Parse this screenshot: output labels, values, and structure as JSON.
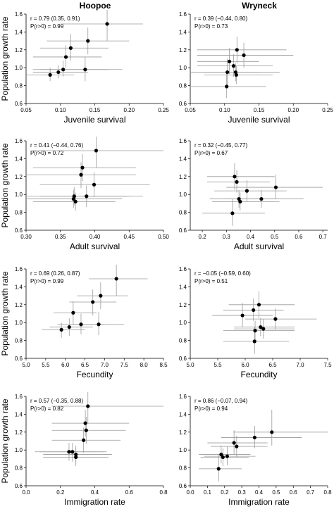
{
  "columns": [
    "Hoopoe",
    "Wryneck"
  ],
  "ylabel": "Population growth rate",
  "chart_data": [
    {
      "type": "scatter",
      "panel_id": "hoopoe-juvenile",
      "xlabel": "Juvenile survival",
      "ylabel": "Population growth rate",
      "xlim": [
        0.05,
        0.25
      ],
      "xticks": [
        "0.05",
        "0.10",
        "0.15",
        "0.20",
        "0.25"
      ],
      "ylim": [
        0.6,
        1.6
      ],
      "yticks": [
        "0.6",
        "0.8",
        "1.0",
        "1.2",
        "1.4",
        "1.6"
      ],
      "stat_r": "r = 0.79 (0.35, 0.91)",
      "stat_p": "P(r>0) = 0.99",
      "points": [
        {
          "x": 0.085,
          "y": 0.92,
          "xlo": 0.05,
          "xhi": 0.12,
          "ylo": 0.85,
          "yhi": 1.0
        },
        {
          "x": 0.097,
          "y": 0.95,
          "xlo": 0.06,
          "xhi": 0.14,
          "ylo": 0.88,
          "yhi": 1.03
        },
        {
          "x": 0.104,
          "y": 0.98,
          "xlo": 0.06,
          "xhi": 0.17,
          "ylo": 0.9,
          "yhi": 1.08
        },
        {
          "x": 0.108,
          "y": 1.12,
          "xlo": 0.06,
          "xhi": 0.16,
          "ylo": 1.0,
          "yhi": 1.25
        },
        {
          "x": 0.115,
          "y": 1.22,
          "xlo": 0.07,
          "xhi": 0.17,
          "ylo": 1.08,
          "yhi": 1.38
        },
        {
          "x": 0.136,
          "y": 0.98,
          "xlo": 0.07,
          "xhi": 0.19,
          "ylo": 0.85,
          "yhi": 1.12
        },
        {
          "x": 0.14,
          "y": 1.3,
          "xlo": 0.08,
          "xhi": 0.2,
          "ylo": 1.15,
          "yhi": 1.45
        },
        {
          "x": 0.168,
          "y": 1.49,
          "xlo": 0.1,
          "xhi": 0.22,
          "ylo": 1.3,
          "yhi": 1.68
        }
      ]
    },
    {
      "type": "scatter",
      "panel_id": "wryneck-juvenile",
      "xlabel": "Juvenile survival",
      "ylabel": "",
      "xlim": [
        0.05,
        0.25
      ],
      "xticks": [
        "0.05",
        "0.10",
        "0.15",
        "0.20",
        "0.25"
      ],
      "ylim": [
        0.6,
        1.6
      ],
      "yticks": [
        "0.6",
        "0.8",
        "1.0",
        "1.2",
        "1.4",
        "1.6"
      ],
      "stat_r": "r = 0.39 (−0.44, 0.80)",
      "stat_p": "P(r>0) = 0.73",
      "points": [
        {
          "x": 0.103,
          "y": 0.79,
          "xlo": 0.05,
          "xhi": 0.16,
          "ylo": 0.66,
          "yhi": 0.95
        },
        {
          "x": 0.104,
          "y": 0.95,
          "xlo": 0.05,
          "xhi": 0.15,
          "ylo": 0.8,
          "yhi": 1.1
        },
        {
          "x": 0.107,
          "y": 1.07,
          "xlo": 0.06,
          "xhi": 0.15,
          "ylo": 0.93,
          "yhi": 1.22
        },
        {
          "x": 0.113,
          "y": 1.02,
          "xlo": 0.06,
          "xhi": 0.17,
          "ylo": 0.9,
          "yhi": 1.15
        },
        {
          "x": 0.116,
          "y": 0.95,
          "xlo": 0.07,
          "xhi": 0.18,
          "ylo": 0.85,
          "yhi": 1.05
        },
        {
          "x": 0.117,
          "y": 0.92,
          "xlo": 0.07,
          "xhi": 0.17,
          "ylo": 0.82,
          "yhi": 1.02
        },
        {
          "x": 0.118,
          "y": 1.2,
          "xlo": 0.06,
          "xhi": 0.19,
          "ylo": 1.05,
          "yhi": 1.35
        },
        {
          "x": 0.128,
          "y": 1.14,
          "xlo": 0.06,
          "xhi": 0.2,
          "ylo": 1.0,
          "yhi": 1.28
        }
      ]
    },
    {
      "type": "scatter",
      "panel_id": "hoopoe-adult",
      "xlabel": "Adult survival",
      "ylabel": "Population growth rate",
      "xlim": [
        0.3,
        0.5
      ],
      "xticks": [
        "0.30",
        "0.35",
        "0.40",
        "0.45",
        "0.50"
      ],
      "ylim": [
        0.6,
        1.6
      ],
      "yticks": [
        "0.6",
        "0.8",
        "1.0",
        "1.2",
        "1.4",
        "1.6"
      ],
      "stat_r": "r = 0.41 (−0.44, 0.76)",
      "stat_p": "P(r>0) = 0.72",
      "points": [
        {
          "x": 0.369,
          "y": 0.95,
          "xlo": 0.3,
          "xhi": 0.44,
          "ylo": 0.85,
          "yhi": 1.05
        },
        {
          "x": 0.37,
          "y": 0.98,
          "xlo": 0.3,
          "xhi": 0.45,
          "ylo": 0.88,
          "yhi": 1.08
        },
        {
          "x": 0.372,
          "y": 0.92,
          "xlo": 0.31,
          "xhi": 0.43,
          "ylo": 0.82,
          "yhi": 1.02
        },
        {
          "x": 0.38,
          "y": 1.22,
          "xlo": 0.3,
          "xhi": 0.46,
          "ylo": 1.07,
          "yhi": 1.36
        },
        {
          "x": 0.382,
          "y": 1.3,
          "xlo": 0.31,
          "xhi": 0.46,
          "ylo": 1.15,
          "yhi": 1.45
        },
        {
          "x": 0.388,
          "y": 0.98,
          "xlo": 0.32,
          "xhi": 0.47,
          "ylo": 0.86,
          "yhi": 1.1
        },
        {
          "x": 0.399,
          "y": 1.11,
          "xlo": 0.32,
          "xhi": 0.48,
          "ylo": 0.97,
          "yhi": 1.25
        },
        {
          "x": 0.402,
          "y": 1.49,
          "xlo": 0.31,
          "xhi": 0.5,
          "ylo": 1.3,
          "yhi": 1.68
        }
      ]
    },
    {
      "type": "scatter",
      "panel_id": "wryneck-adult",
      "xlabel": "Adult survival",
      "ylabel": "",
      "xlim": [
        0.15,
        0.72
      ],
      "xticks": [
        "0.2",
        "0.3",
        "0.4",
        "0.5",
        "0.6",
        "0.7"
      ],
      "ylim": [
        0.6,
        1.6
      ],
      "yticks": [
        "0.6",
        "0.8",
        "1.0",
        "1.2",
        "1.4",
        "1.6"
      ],
      "stat_r": "r = 0.32 (−0.45, 0.77)",
      "stat_p": "P(r>0) = 0.67",
      "points": [
        {
          "x": 0.325,
          "y": 0.79,
          "xlo": 0.2,
          "xhi": 0.46,
          "ylo": 0.65,
          "yhi": 0.95
        },
        {
          "x": 0.334,
          "y": 1.2,
          "xlo": 0.22,
          "xhi": 0.5,
          "ylo": 1.05,
          "yhi": 1.35
        },
        {
          "x": 0.343,
          "y": 1.14,
          "xlo": 0.22,
          "xhi": 0.48,
          "ylo": 1.02,
          "yhi": 1.27
        },
        {
          "x": 0.352,
          "y": 0.95,
          "xlo": 0.23,
          "xhi": 0.5,
          "ylo": 0.85,
          "yhi": 1.05
        },
        {
          "x": 0.357,
          "y": 0.92,
          "xlo": 0.24,
          "xhi": 0.52,
          "ylo": 0.82,
          "yhi": 1.02
        },
        {
          "x": 0.385,
          "y": 1.04,
          "xlo": 0.25,
          "xhi": 0.55,
          "ylo": 0.92,
          "yhi": 1.16
        },
        {
          "x": 0.445,
          "y": 0.95,
          "xlo": 0.3,
          "xhi": 0.62,
          "ylo": 0.85,
          "yhi": 1.05
        },
        {
          "x": 0.505,
          "y": 1.08,
          "xlo": 0.3,
          "xhi": 0.7,
          "ylo": 0.95,
          "yhi": 1.22
        }
      ]
    },
    {
      "type": "scatter",
      "panel_id": "hoopoe-fecundity",
      "xlabel": "Fecundity",
      "ylabel": "Population growth rate",
      "xlim": [
        5.0,
        8.5
      ],
      "xticks": [
        "5.0",
        "5.5",
        "6.0",
        "6.5",
        "7.0",
        "7.5",
        "8.0",
        "8.5"
      ],
      "ylim": [
        0.6,
        1.6
      ],
      "yticks": [
        "0.6",
        "0.8",
        "1.0",
        "1.2",
        "1.4",
        "1.6"
      ],
      "stat_r": "r = 0.69 (0.26, 0.87)",
      "stat_p": "P(r>0) = 0.99",
      "points": [
        {
          "x": 5.9,
          "y": 0.92,
          "xlo": 5.4,
          "xhi": 6.5,
          "ylo": 0.83,
          "yhi": 1.0
        },
        {
          "x": 6.1,
          "y": 0.95,
          "xlo": 5.6,
          "xhi": 6.7,
          "ylo": 0.85,
          "yhi": 1.05
        },
        {
          "x": 6.2,
          "y": 1.11,
          "xlo": 5.7,
          "xhi": 6.8,
          "ylo": 0.97,
          "yhi": 1.24
        },
        {
          "x": 6.4,
          "y": 0.98,
          "xlo": 5.8,
          "xhi": 7.0,
          "ylo": 0.87,
          "yhi": 1.1
        },
        {
          "x": 6.7,
          "y": 1.23,
          "xlo": 6.1,
          "xhi": 7.3,
          "ylo": 1.08,
          "yhi": 1.37
        },
        {
          "x": 6.85,
          "y": 0.98,
          "xlo": 6.2,
          "xhi": 7.5,
          "ylo": 0.86,
          "yhi": 1.12
        },
        {
          "x": 6.9,
          "y": 1.3,
          "xlo": 6.3,
          "xhi": 7.6,
          "ylo": 1.15,
          "yhi": 1.45
        },
        {
          "x": 7.3,
          "y": 1.49,
          "xlo": 6.6,
          "xhi": 8.1,
          "ylo": 1.3,
          "yhi": 1.68
        }
      ]
    },
    {
      "type": "scatter",
      "panel_id": "wryneck-fecundity",
      "xlabel": "Fecundity",
      "ylabel": "",
      "xlim": [
        5.0,
        7.5
      ],
      "xticks": [
        "5.0",
        "5.5",
        "6.0",
        "6.5",
        "7.0",
        "7.5"
      ],
      "ylim": [
        0.6,
        1.6
      ],
      "yticks": [
        "0.6",
        "0.8",
        "1.0",
        "1.2",
        "1.4",
        "1.6"
      ],
      "stat_r": "r = −0.05 (−0.59, 0.60)",
      "stat_p": "P(r>0) = 0.51",
      "points": [
        {
          "x": 5.95,
          "y": 1.08,
          "xlo": 5.4,
          "xhi": 6.5,
          "ylo": 0.95,
          "yhi": 1.22
        },
        {
          "x": 6.15,
          "y": 1.14,
          "xlo": 5.6,
          "xhi": 6.7,
          "ylo": 1.02,
          "yhi": 1.27
        },
        {
          "x": 6.17,
          "y": 0.79,
          "xlo": 5.6,
          "xhi": 6.8,
          "ylo": 0.65,
          "yhi": 0.95
        },
        {
          "x": 6.18,
          "y": 0.91,
          "xlo": 5.6,
          "xhi": 6.9,
          "ylo": 0.8,
          "yhi": 1.02
        },
        {
          "x": 6.25,
          "y": 1.2,
          "xlo": 5.7,
          "xhi": 6.9,
          "ylo": 1.05,
          "yhi": 1.35
        },
        {
          "x": 6.28,
          "y": 0.95,
          "xlo": 5.8,
          "xhi": 6.9,
          "ylo": 0.85,
          "yhi": 1.05
        },
        {
          "x": 6.33,
          "y": 0.93,
          "xlo": 5.8,
          "xhi": 6.9,
          "ylo": 0.82,
          "yhi": 1.04
        },
        {
          "x": 6.55,
          "y": 1.04,
          "xlo": 6.0,
          "xhi": 7.3,
          "ylo": 0.92,
          "yhi": 1.16
        }
      ]
    },
    {
      "type": "scatter",
      "panel_id": "hoopoe-immigration",
      "xlabel": "Immigration rate",
      "ylabel": "Population growth rate",
      "xlim": [
        0.0,
        0.8
      ],
      "xticks": [
        "0.0",
        "0.2",
        "0.4",
        "0.6",
        "0.8"
      ],
      "ylim": [
        0.6,
        1.6
      ],
      "yticks": [
        "0.6",
        "0.8",
        "1.0",
        "1.2",
        "1.4",
        "1.6"
      ],
      "stat_r": "r = 0.57 (−0.35, 0.88)",
      "stat_p": "P(r>0) = 0.82",
      "points": [
        {
          "x": 0.25,
          "y": 0.98,
          "xlo": 0.05,
          "xhi": 0.45,
          "ylo": 0.88,
          "yhi": 1.08
        },
        {
          "x": 0.27,
          "y": 0.98,
          "xlo": 0.08,
          "xhi": 0.47,
          "ylo": 0.87,
          "yhi": 1.08
        },
        {
          "x": 0.29,
          "y": 0.95,
          "xlo": 0.1,
          "xhi": 0.5,
          "ylo": 0.85,
          "yhi": 1.05
        },
        {
          "x": 0.29,
          "y": 0.92,
          "xlo": 0.1,
          "xhi": 0.48,
          "ylo": 0.82,
          "yhi": 1.02
        },
        {
          "x": 0.335,
          "y": 1.11,
          "xlo": 0.15,
          "xhi": 0.55,
          "ylo": 0.97,
          "yhi": 1.25
        },
        {
          "x": 0.345,
          "y": 1.3,
          "xlo": 0.15,
          "xhi": 0.6,
          "ylo": 1.15,
          "yhi": 1.45
        },
        {
          "x": 0.35,
          "y": 1.22,
          "xlo": 0.15,
          "xhi": 0.58,
          "ylo": 1.07,
          "yhi": 1.37
        },
        {
          "x": 0.36,
          "y": 1.49,
          "xlo": 0.15,
          "xhi": 0.8,
          "ylo": 1.3,
          "yhi": 1.68
        }
      ]
    },
    {
      "type": "scatter",
      "panel_id": "wryneck-immigration",
      "xlabel": "Immigration rate",
      "ylabel": "",
      "xlim": [
        0.0,
        0.8
      ],
      "xticks": [
        "0.0",
        "0.1",
        "0.2",
        "0.3",
        "0.4",
        "0.5",
        "0.6",
        "0.7",
        "0.8"
      ],
      "ylim": [
        0.6,
        1.6
      ],
      "yticks": [
        "0.6",
        "0.8",
        "1.0",
        "1.2",
        "1.4",
        "1.6"
      ],
      "stat_r": "r = 0.86 (−0.07, 0.94)",
      "stat_p": "P(r>0) = 0.94",
      "points": [
        {
          "x": 0.165,
          "y": 0.79,
          "xlo": 0.05,
          "xhi": 0.3,
          "ylo": 0.65,
          "yhi": 0.95
        },
        {
          "x": 0.18,
          "y": 0.95,
          "xlo": 0.05,
          "xhi": 0.35,
          "ylo": 0.85,
          "yhi": 1.05
        },
        {
          "x": 0.19,
          "y": 0.92,
          "xlo": 0.06,
          "xhi": 0.34,
          "ylo": 0.82,
          "yhi": 1.02
        },
        {
          "x": 0.215,
          "y": 0.93,
          "xlo": 0.08,
          "xhi": 0.38,
          "ylo": 0.83,
          "yhi": 1.04
        },
        {
          "x": 0.255,
          "y": 1.08,
          "xlo": 0.1,
          "xhi": 0.45,
          "ylo": 0.95,
          "yhi": 1.22
        },
        {
          "x": 0.27,
          "y": 1.04,
          "xlo": 0.12,
          "xhi": 0.45,
          "ylo": 0.92,
          "yhi": 1.16
        },
        {
          "x": 0.375,
          "y": 1.14,
          "xlo": 0.18,
          "xhi": 0.65,
          "ylo": 1.02,
          "yhi": 1.27
        },
        {
          "x": 0.475,
          "y": 1.2,
          "xlo": 0.25,
          "xhi": 0.8,
          "ylo": 1.05,
          "yhi": 1.45
        }
      ]
    }
  ]
}
